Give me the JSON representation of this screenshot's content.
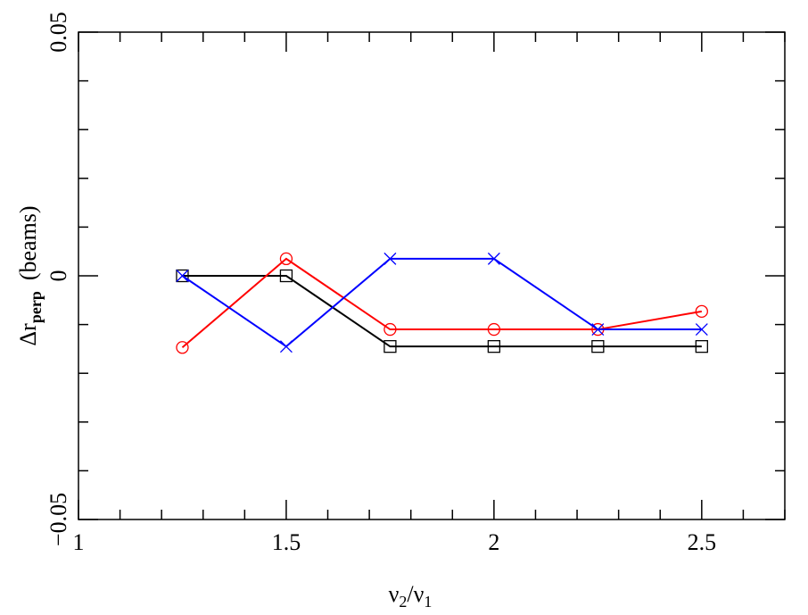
{
  "chart_data": {
    "type": "line",
    "xlabel": {
      "main": "ν",
      "sub": "2",
      "mid": "/ν",
      "sub2": "1"
    },
    "ylabel": {
      "main": "Δr",
      "sub": "perp",
      "rest": "(beams)"
    },
    "x": [
      1.25,
      1.5,
      1.75,
      2,
      2.25,
      2.5
    ],
    "series": [
      {
        "color": "#000000",
        "marker": "square",
        "values": [
          0,
          0,
          -0.0145,
          -0.0145,
          -0.0145,
          -0.0145
        ]
      },
      {
        "color": "#ff0000",
        "marker": "circle",
        "values": [
          -0.0147,
          0.0035,
          -0.011,
          -0.011,
          -0.011,
          -0.0073
        ]
      },
      {
        "color": "#0000ff",
        "marker": "cross",
        "values": [
          0,
          -0.0145,
          0.0035,
          0.0035,
          -0.011,
          -0.011
        ]
      }
    ],
    "xlim": [
      1,
      2.7
    ],
    "ylim": [
      -0.05,
      0.05
    ],
    "xticks": [
      1,
      1.5,
      2,
      2.5
    ],
    "yticks": [
      {
        "value": -0.05,
        "label": "−0.05"
      },
      0,
      0.05
    ],
    "xminorticks": [
      1.1,
      1.2,
      1.3,
      1.4,
      1.6,
      1.7,
      1.8,
      1.9,
      2.1,
      2.2,
      2.3,
      2.4,
      2.6,
      2.7
    ],
    "yminorticks": [
      -0.04,
      -0.03,
      -0.02,
      -0.01,
      0.01,
      0.02,
      0.03,
      0.04
    ]
  }
}
